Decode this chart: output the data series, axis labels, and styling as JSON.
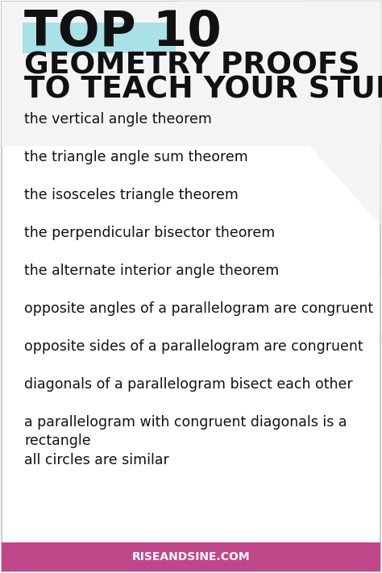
{
  "bg_color": "#ffffff",
  "border_color": "#cccccc",
  "title_top": "TOP 10",
  "title_highlight_color": "#7fd8e0",
  "title_sub1": "GEOMETRY PROOFS",
  "title_sub2": "TO TEACH YOUR STUDENTS",
  "title_color": "#111111",
  "items": [
    "the vertical angle theorem",
    "the triangle angle sum theorem",
    "the isosceles triangle theorem",
    "the perpendicular bisector theorem",
    "the alternate interior angle theorem",
    "opposite angles of a parallelogram are congruent",
    "opposite sides of a parallelogram are congruent",
    "diagonals of a parallelogram bisect each other",
    "a parallelogram with congruent diagonals is a\nrectangle",
    "all circles are similar"
  ],
  "item_color": "#111111",
  "footer_bg": "#c0478a",
  "footer_text": "RISEANDSINE.COM",
  "footer_text_color": "#ffffff",
  "watermark_color": "#d8d8d8",
  "header_bg": "#f0f0f2"
}
